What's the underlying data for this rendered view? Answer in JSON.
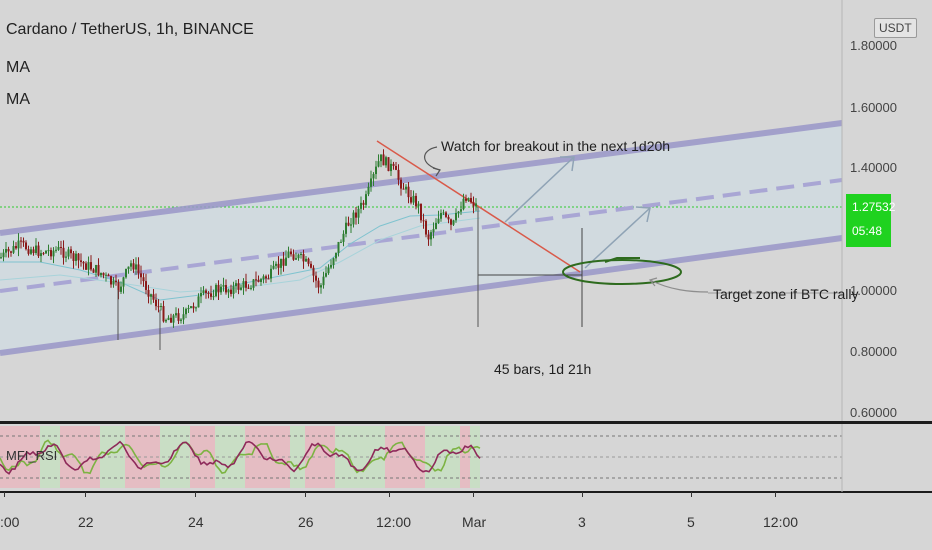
{
  "legend": {
    "title": "Cardano / TetherUS, 1h, BINANCE",
    "indicators": [
      "MA",
      "MA"
    ]
  },
  "price_axis": {
    "currency_badge": "USDT",
    "ticks": [
      {
        "label": "1.80000",
        "value": 1.8
      },
      {
        "label": "1.60000",
        "value": 1.6
      },
      {
        "label": "1.40000",
        "value": 1.4
      },
      {
        "label": "1.00000",
        "value": 1.0
      },
      {
        "label": "0.80000",
        "value": 0.8
      },
      {
        "label": "0.60000",
        "value": 0.6
      }
    ],
    "last_price": "1.27532",
    "countdown": "05:48"
  },
  "annotations": {
    "breakout_note": "Watch for breakout in the next 1d20h",
    "target_note": "Target zone if BTC rally",
    "range_note": "45 bars, 1d 21h"
  },
  "indicator_pane": {
    "label": "MFI_RSI"
  },
  "time_axis": {
    "ticks": [
      ":00",
      "22",
      "24",
      "26",
      "12:00",
      "Mar",
      "3",
      "5",
      "12:00"
    ]
  },
  "colors": {
    "background": "#d6d6d6",
    "up_candle": "#2e7d32",
    "down_candle": "#8b1a1a",
    "channel": "#9a97c8",
    "trendline": "#d95a4a",
    "price_badge": "#1fd21f",
    "target_ellipse": "#2e6b1e"
  }
}
